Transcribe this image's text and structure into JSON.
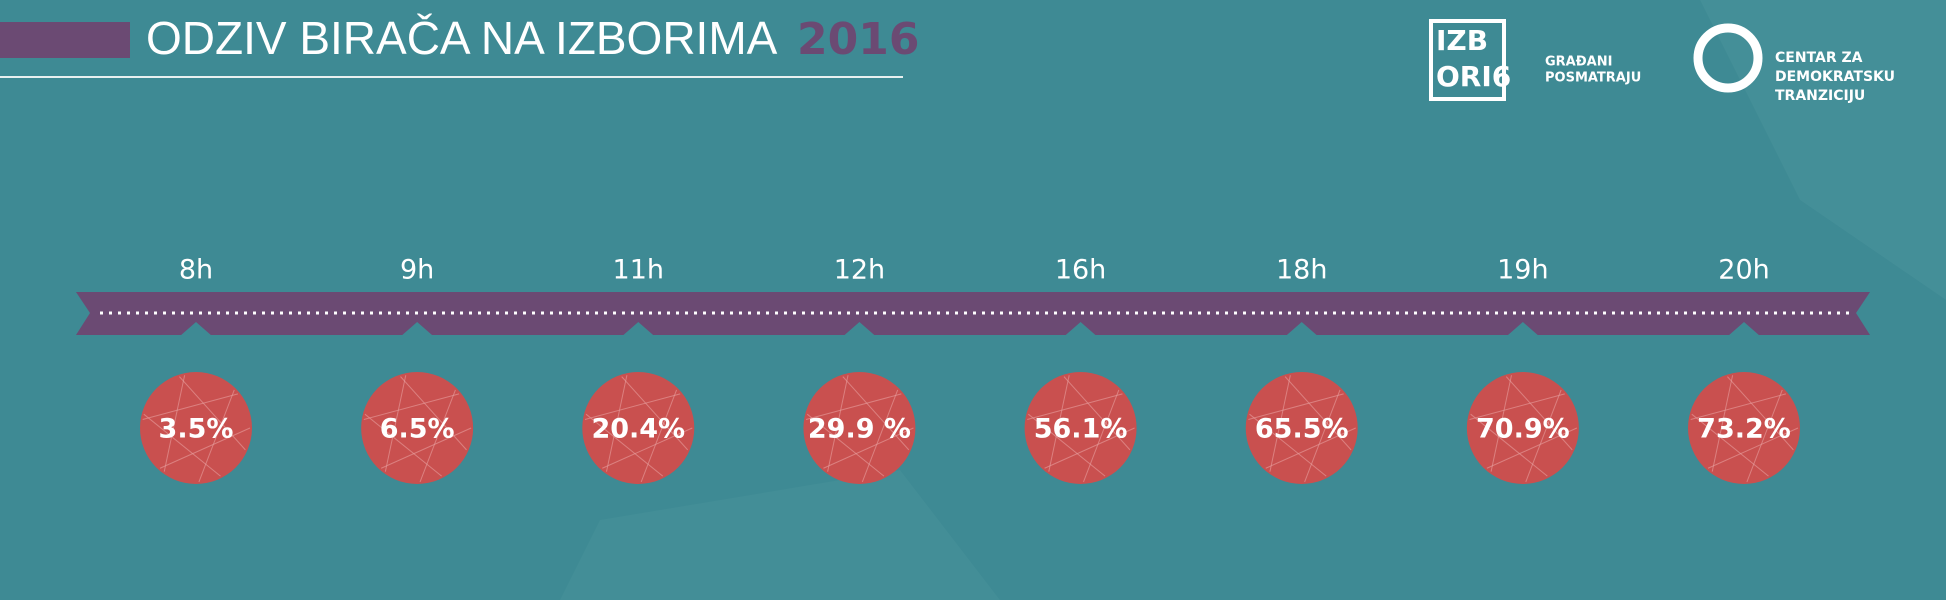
{
  "header": {
    "title": "ODZIV BIRAČA NA IZBORIMA",
    "year": "2016"
  },
  "logos": {
    "izbori_line1": "IZB",
    "izbori_line2": "ORI6",
    "izbori_tag1": "GRAĐANI",
    "izbori_tag2": "POSMATRAJU",
    "cdt_line1": "CENTAR ZA",
    "cdt_line2": "DEMOKRATSKU",
    "cdt_line3": "TRANZICIJU"
  },
  "chart_data": {
    "type": "timeline",
    "categories": [
      "8h",
      "9h",
      "11h",
      "12h",
      "16h",
      "18h",
      "19h",
      "20h"
    ],
    "values": [
      3.5,
      6.5,
      20.4,
      29.9,
      56.1,
      65.5,
      70.9,
      73.2
    ],
    "value_labels": [
      "3.5%",
      "6.5%",
      "20.4%",
      "29.9 %",
      "56.1%",
      "65.5%",
      "70.9%",
      "73.2%"
    ],
    "color": "#c9504f"
  }
}
